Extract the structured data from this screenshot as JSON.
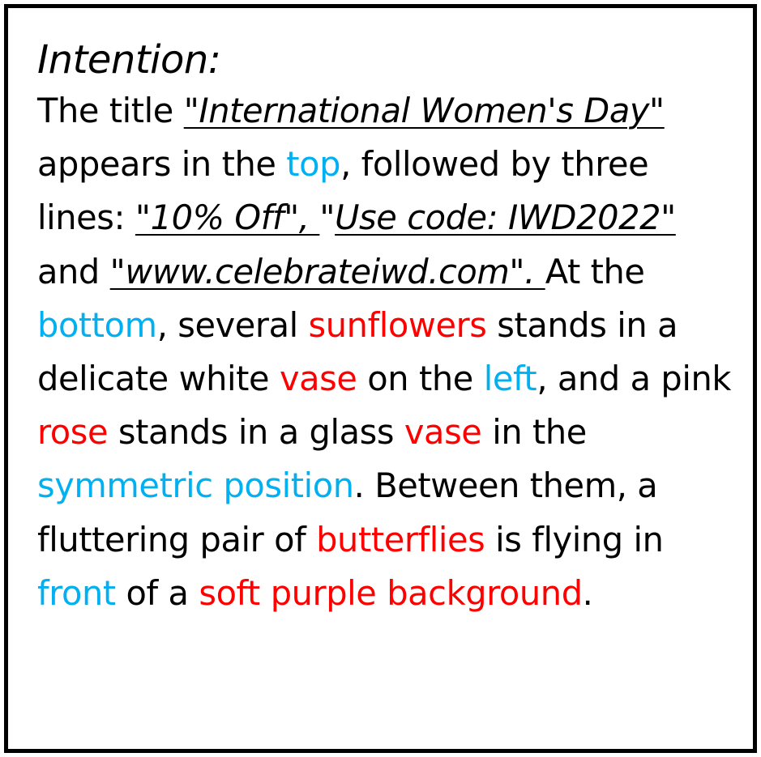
{
  "heading": "Intention:",
  "colors": {
    "object": "#ff0000",
    "position": "#00b0f0",
    "text": "#000000",
    "border": "#000000"
  },
  "paragraph": {
    "s01": "The title ",
    "q1": "\"International Women's Day\"",
    "s02": " appears in the ",
    "p01": "top",
    "s03": ", followed by three lines: ",
    "q2": "\"10% Off\", ",
    "s04": "\"",
    "q3": "Use code: IWD2022\"",
    "s05": " and ",
    "q4": "\"www.celebrateiwd.com\". ",
    "s06": "At the ",
    "p02": "bottom",
    "s07": ", several ",
    "o01": "sunflowers",
    "s08": " stands in a delicate white ",
    "o02": "vase",
    "s09": " on the ",
    "p03": "left",
    "s10": ", and a pink ",
    "o03": "rose",
    "s11": " stands in a glass ",
    "o04": "vase",
    "s12": " in the ",
    "p04": "symmetric position",
    "s13": ". Between them, a fluttering pair of ",
    "o05": "butterflies",
    "s14": " is flying in ",
    "p05": "front",
    "s15": " of a ",
    "o06": "soft purple background",
    "s16": "."
  }
}
